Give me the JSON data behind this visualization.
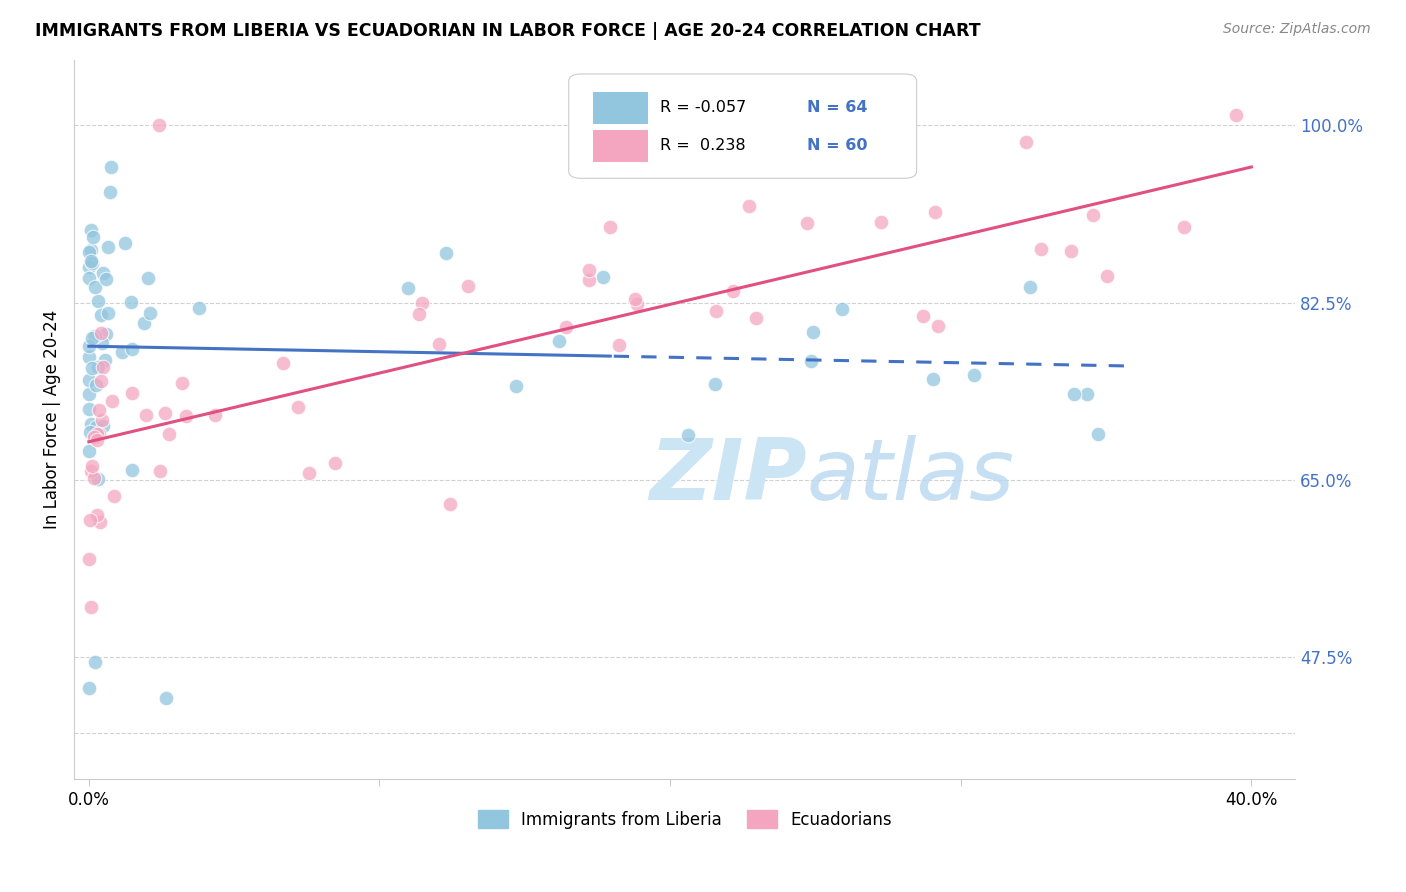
{
  "title": "IMMIGRANTS FROM LIBERIA VS ECUADORIAN IN LABOR FORCE | AGE 20-24 CORRELATION CHART",
  "source": "Source: ZipAtlas.com",
  "ylabel": "In Labor Force | Age 20-24",
  "color_blue": "#92c5de",
  "color_pink": "#f4a6c0",
  "line_blue": "#4472c4",
  "line_pink": "#e05080",
  "watermark_color": "#cce5f5",
  "y_ticks": [
    0.4,
    0.475,
    0.65,
    0.825,
    1.0
  ],
  "y_tick_labels": [
    "",
    "47.5%",
    "65.0%",
    "82.5%",
    "100.0%"
  ],
  "blue_x": [
    0.001,
    0.001,
    0.001,
    0.001,
    0.002,
    0.002,
    0.002,
    0.003,
    0.003,
    0.004,
    0.004,
    0.005,
    0.005,
    0.006,
    0.006,
    0.007,
    0.007,
    0.008,
    0.008,
    0.009,
    0.009,
    0.01,
    0.01,
    0.011,
    0.012,
    0.013,
    0.013,
    0.015,
    0.016,
    0.018,
    0.02,
    0.022,
    0.024,
    0.026,
    0.028,
    0.03,
    0.032,
    0.034,
    0.036,
    0.038,
    0.04,
    0.045,
    0.05,
    0.055,
    0.06,
    0.065,
    0.07,
    0.08,
    0.09,
    0.1,
    0.12,
    0.14,
    0.16,
    0.18,
    0.2,
    0.22,
    0.24,
    0.26,
    0.28,
    0.3,
    0.32,
    0.34,
    0.003,
    0.006
  ],
  "blue_y": [
    0.82,
    0.8,
    0.78,
    0.76,
    0.84,
    0.81,
    0.79,
    0.85,
    0.82,
    0.86,
    0.83,
    0.88,
    0.85,
    0.87,
    0.84,
    0.86,
    0.83,
    0.87,
    0.84,
    0.88,
    0.85,
    0.79,
    0.77,
    0.81,
    0.82,
    0.9,
    0.87,
    0.81,
    0.79,
    0.82,
    0.8,
    0.81,
    0.79,
    0.8,
    0.78,
    0.78,
    0.8,
    0.78,
    0.77,
    0.76,
    0.77,
    0.75,
    0.76,
    0.72,
    0.7,
    0.69,
    0.77,
    0.76,
    0.75,
    0.78,
    0.79,
    0.8,
    0.79,
    0.78,
    0.77,
    0.76,
    0.75,
    0.74,
    0.73,
    0.72,
    0.71,
    0.7,
    0.96,
    1.0
  ],
  "pink_x": [
    0.001,
    0.002,
    0.003,
    0.004,
    0.005,
    0.006,
    0.007,
    0.008,
    0.01,
    0.012,
    0.014,
    0.016,
    0.018,
    0.02,
    0.022,
    0.024,
    0.026,
    0.028,
    0.03,
    0.032,
    0.034,
    0.036,
    0.038,
    0.04,
    0.045,
    0.05,
    0.055,
    0.06,
    0.07,
    0.08,
    0.09,
    0.1,
    0.12,
    0.14,
    0.16,
    0.18,
    0.2,
    0.22,
    0.24,
    0.26,
    0.28,
    0.3,
    0.32,
    0.34,
    0.36,
    0.38,
    0.4,
    0.001,
    0.003,
    0.006,
    0.01,
    0.015,
    0.02,
    0.03,
    0.04,
    0.06,
    0.1,
    0.16,
    0.22,
    0.36
  ],
  "pink_y": [
    0.76,
    0.77,
    0.75,
    0.77,
    0.72,
    0.75,
    0.78,
    0.76,
    0.79,
    0.78,
    0.77,
    0.76,
    0.75,
    0.78,
    0.76,
    0.78,
    0.76,
    0.75,
    0.78,
    0.76,
    0.75,
    0.74,
    0.73,
    0.76,
    0.75,
    0.74,
    0.73,
    0.79,
    0.84,
    0.79,
    0.78,
    0.78,
    0.8,
    0.81,
    0.84,
    0.86,
    0.84,
    0.86,
    0.88,
    0.82,
    0.84,
    0.82,
    0.8,
    0.8,
    0.78,
    0.76,
    1.0,
    0.68,
    0.72,
    0.77,
    0.75,
    0.76,
    0.74,
    0.79,
    0.78,
    0.78,
    0.78,
    0.87,
    0.89,
    0.79
  ]
}
